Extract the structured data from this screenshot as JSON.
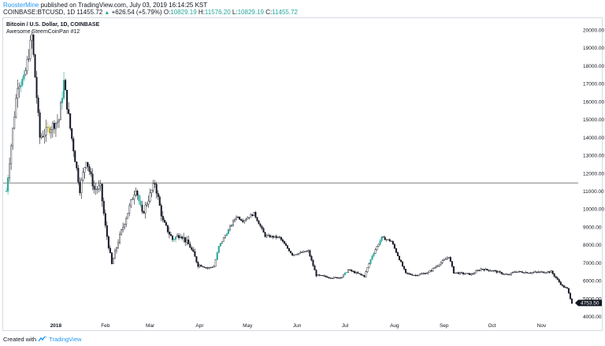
{
  "header": {
    "user": "RoosterMine",
    "published_text": "published on TradingView.com, July 03, 2019 16:14:25 KST"
  },
  "quote": {
    "symbol": "COINBASE:BTCUSD, 1D",
    "last": "11455.72",
    "change": "+626.54 (+5.79%)",
    "o_label": "O:",
    "o": "10829.19",
    "h_label": "H:",
    "h": "11576.20",
    "l_label": "L:",
    "l": "10829.19",
    "c_label": "C:",
    "c": "11455.72"
  },
  "legend": {
    "series_title": "Bitcoin / U.S. Dollar, 1D, COINBASE",
    "indicator": "Awesome SteemCoinPan #12"
  },
  "footer": {
    "created_with": "Created with",
    "brand": "TradingView"
  },
  "colors": {
    "candle": "#131722",
    "highlight_green": "#26a69a",
    "highlight_yellow": "#b8a92a",
    "hline": "#555555",
    "axis_text": "#131722",
    "price_tag_bg": "#131722"
  },
  "chart_data": {
    "type": "candlestick",
    "title": "Bitcoin / U.S. Dollar, 1D, COINBASE",
    "x_tick_labels": [
      "2018",
      "Feb",
      "Mar",
      "Apr",
      "May",
      "Jun",
      "Jul",
      "Aug",
      "Sep",
      "Oct",
      "Nov"
    ],
    "y_ticks": [
      "20000.00",
      "19000.00",
      "18000.00",
      "17000.00",
      "16000.00",
      "15000.00",
      "14000.00",
      "13000.00",
      "12000.00",
      "11000.00",
      "10000.00",
      "9000.00",
      "8000.00",
      "7000.00",
      "6000.00",
      "5000.00",
      "4000.00"
    ],
    "ylim": [
      4000,
      20000
    ],
    "horizontal_line": 11455.72,
    "last_price_label": "4753.50",
    "last_price": 4753.5,
    "close_path": [
      [
        "2017-12-01",
        11000
      ],
      [
        "2017-12-08",
        17000
      ],
      [
        "2017-12-12",
        17200
      ],
      [
        "2017-12-17",
        19650
      ],
      [
        "2017-12-22",
        14000
      ],
      [
        "2017-12-28",
        14500
      ],
      [
        "2018-01-03",
        15000
      ],
      [
        "2018-01-06",
        17100
      ],
      [
        "2018-01-10",
        14500
      ],
      [
        "2018-01-16",
        11100
      ],
      [
        "2018-01-20",
        12800
      ],
      [
        "2018-01-25",
        11100
      ],
      [
        "2018-01-29",
        11200
      ],
      [
        "2018-02-01",
        9000
      ],
      [
        "2018-02-05",
        6900
      ],
      [
        "2018-02-09",
        8200
      ],
      [
        "2018-02-16",
        10100
      ],
      [
        "2018-02-20",
        11200
      ],
      [
        "2018-02-24",
        9700
      ],
      [
        "2018-03-04",
        11450
      ],
      [
        "2018-03-09",
        9300
      ],
      [
        "2018-03-15",
        8300
      ],
      [
        "2018-03-20",
        8600
      ],
      [
        "2018-03-26",
        7900
      ],
      [
        "2018-03-31",
        6900
      ],
      [
        "2018-04-06",
        6700
      ],
      [
        "2018-04-10",
        6800
      ],
      [
        "2018-04-13",
        7900
      ],
      [
        "2018-04-24",
        9600
      ],
      [
        "2018-04-28",
        9350
      ],
      [
        "2018-05-05",
        9750
      ],
      [
        "2018-05-12",
        8500
      ],
      [
        "2018-05-21",
        8400
      ],
      [
        "2018-05-29",
        7450
      ],
      [
        "2018-06-08",
        7650
      ],
      [
        "2018-06-13",
        6300
      ],
      [
        "2018-06-24",
        6150
      ],
      [
        "2018-06-29",
        6200
      ],
      [
        "2018-07-03",
        6600
      ],
      [
        "2018-07-13",
        6250
      ],
      [
        "2018-07-18",
        7400
      ],
      [
        "2018-07-24",
        8400
      ],
      [
        "2018-07-30",
        8200
      ],
      [
        "2018-08-08",
        6400
      ],
      [
        "2018-08-14",
        6300
      ],
      [
        "2018-08-22",
        6450
      ],
      [
        "2018-09-04",
        7350
      ],
      [
        "2018-09-07",
        6450
      ],
      [
        "2018-09-18",
        6350
      ],
      [
        "2018-09-24",
        6650
      ],
      [
        "2018-10-02",
        6550
      ],
      [
        "2018-10-11",
        6300
      ],
      [
        "2018-10-15",
        6500
      ],
      [
        "2018-10-25",
        6450
      ],
      [
        "2018-11-07",
        6500
      ],
      [
        "2018-11-14",
        5700
      ],
      [
        "2018-11-17",
        5550
      ],
      [
        "2018-11-20",
        4753.5
      ]
    ],
    "highlighted_ranges": [
      {
        "from": "2017-12-01",
        "to": "2017-12-02",
        "color": "green"
      },
      {
        "from": "2017-12-10",
        "to": "2017-12-12",
        "color": "green"
      },
      {
        "from": "2017-12-27",
        "to": "2017-12-28",
        "color": "yellow"
      },
      {
        "from": "2018-01-05",
        "to": "2018-01-06",
        "color": "green"
      },
      {
        "from": "2018-02-22",
        "to": "2018-02-23",
        "color": "green"
      },
      {
        "from": "2018-03-16",
        "to": "2018-03-17",
        "color": "green"
      },
      {
        "from": "2018-04-12",
        "to": "2018-04-14",
        "color": "green"
      },
      {
        "from": "2018-04-18",
        "to": "2018-04-19",
        "color": "green"
      },
      {
        "from": "2018-07-01",
        "to": "2018-07-02",
        "color": "green"
      },
      {
        "from": "2018-07-17",
        "to": "2018-07-19",
        "color": "green"
      },
      {
        "from": "2018-07-23",
        "to": "2018-07-24",
        "color": "green"
      }
    ]
  }
}
